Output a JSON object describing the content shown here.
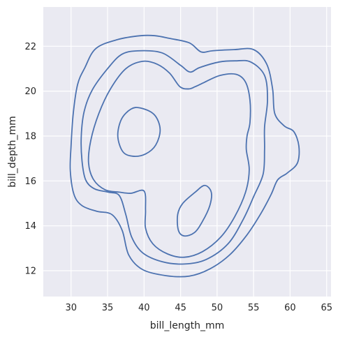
{
  "chart_data": {
    "type": "kde-contour",
    "title": "",
    "xlabel": "bill_length_mm",
    "ylabel": "bill_depth_mm",
    "xlim": [
      26.2,
      65.6
    ],
    "ylim": [
      10.85,
      23.75
    ],
    "xticks": [
      30,
      35,
      40,
      45,
      50,
      55,
      60,
      65
    ],
    "yticks": [
      12,
      14,
      16,
      18,
      20,
      22
    ],
    "grid": true,
    "line_color": "#4c72b0",
    "background_color": "#eaeaf2",
    "contours": [
      {
        "level": "outer",
        "closed": true,
        "points": [
          [
            39.5,
            22.47
          ],
          [
            36.4,
            22.3
          ],
          [
            33.4,
            21.9
          ],
          [
            31.9,
            21.05
          ],
          [
            30.9,
            20.3
          ],
          [
            30.3,
            19.0
          ],
          [
            30.0,
            17.55
          ],
          [
            29.9,
            16.45
          ],
          [
            30.4,
            15.4
          ],
          [
            31.5,
            14.9
          ],
          [
            33.5,
            14.65
          ],
          [
            35.6,
            14.5
          ],
          [
            37.0,
            13.8
          ],
          [
            37.9,
            12.7
          ],
          [
            39.8,
            12.05
          ],
          [
            43.0,
            11.78
          ],
          [
            46.2,
            11.76
          ],
          [
            49.0,
            12.08
          ],
          [
            51.7,
            12.7
          ],
          [
            54.1,
            13.6
          ],
          [
            56.0,
            14.55
          ],
          [
            57.4,
            15.4
          ],
          [
            58.3,
            16.05
          ],
          [
            59.6,
            16.35
          ],
          [
            61.0,
            16.8
          ],
          [
            61.2,
            17.55
          ],
          [
            60.5,
            18.2
          ],
          [
            59.2,
            18.45
          ],
          [
            57.9,
            19.0
          ],
          [
            57.6,
            20.1
          ],
          [
            56.8,
            21.2
          ],
          [
            55.0,
            21.85
          ],
          [
            52.3,
            21.85
          ],
          [
            49.4,
            21.8
          ],
          [
            47.8,
            21.75
          ],
          [
            46.2,
            22.15
          ],
          [
            43.5,
            22.35
          ],
          [
            41.5,
            22.47
          ]
        ]
      },
      {
        "level": "middle",
        "closed": true,
        "points": [
          [
            39.5,
            21.8
          ],
          [
            37.0,
            21.65
          ],
          [
            35.0,
            21.0
          ],
          [
            32.9,
            20.05
          ],
          [
            31.8,
            19.1
          ],
          [
            31.4,
            18.0
          ],
          [
            31.5,
            16.9
          ],
          [
            32.0,
            16.05
          ],
          [
            33.2,
            15.65
          ],
          [
            35.1,
            15.5
          ],
          [
            36.6,
            15.35
          ],
          [
            37.5,
            14.5
          ],
          [
            38.3,
            13.5
          ],
          [
            39.8,
            12.8
          ],
          [
            42.5,
            12.4
          ],
          [
            45.5,
            12.3
          ],
          [
            48.5,
            12.5
          ],
          [
            51.5,
            13.2
          ],
          [
            53.6,
            14.3
          ],
          [
            55.0,
            15.3
          ],
          [
            56.3,
            16.3
          ],
          [
            56.5,
            17.4
          ],
          [
            56.5,
            18.4
          ],
          [
            56.9,
            19.6
          ],
          [
            56.5,
            20.7
          ],
          [
            54.6,
            21.3
          ],
          [
            52.5,
            21.35
          ],
          [
            50.3,
            21.3
          ],
          [
            47.6,
            21.05
          ],
          [
            46.3,
            20.85
          ],
          [
            45.0,
            21.15
          ],
          [
            42.5,
            21.7
          ]
        ]
      },
      {
        "level": "inner",
        "closed": true,
        "points": [
          [
            39.8,
            21.33
          ],
          [
            37.5,
            21.0
          ],
          [
            35.4,
            20.1
          ],
          [
            33.8,
            19.0
          ],
          [
            32.7,
            17.8
          ],
          [
            32.4,
            16.8
          ],
          [
            33.1,
            16.05
          ],
          [
            34.7,
            15.6
          ],
          [
            36.6,
            15.5
          ],
          [
            38.2,
            15.45
          ],
          [
            40.0,
            15.55
          ],
          [
            40.2,
            14.7
          ],
          [
            40.2,
            13.9
          ],
          [
            41.2,
            13.2
          ],
          [
            43.2,
            12.75
          ],
          [
            45.5,
            12.6
          ],
          [
            48.0,
            12.85
          ],
          [
            50.5,
            13.5
          ],
          [
            52.4,
            14.4
          ],
          [
            53.9,
            15.5
          ],
          [
            54.4,
            16.5
          ],
          [
            54.0,
            17.4
          ],
          [
            54.1,
            18.0
          ],
          [
            54.5,
            18.6
          ],
          [
            54.5,
            19.6
          ],
          [
            53.9,
            20.4
          ],
          [
            52.6,
            20.75
          ],
          [
            50.4,
            20.7
          ],
          [
            48.3,
            20.4
          ],
          [
            47.0,
            20.2
          ],
          [
            46.1,
            20.1
          ],
          [
            44.9,
            20.2
          ],
          [
            43.5,
            20.8
          ],
          [
            41.8,
            21.2
          ]
        ]
      },
      {
        "level": "peak-1",
        "closed": true,
        "points": [
          [
            39.5,
            19.25
          ],
          [
            41.4,
            18.95
          ],
          [
            42.2,
            18.3
          ],
          [
            41.6,
            17.6
          ],
          [
            40.2,
            17.2
          ],
          [
            38.5,
            17.1
          ],
          [
            37.1,
            17.3
          ],
          [
            36.4,
            18.0
          ],
          [
            36.9,
            18.75
          ],
          [
            38.2,
            19.2
          ]
        ]
      },
      {
        "level": "peak-2",
        "closed": true,
        "points": [
          [
            48.3,
            15.8
          ],
          [
            49.2,
            15.5
          ],
          [
            49.0,
            14.9
          ],
          [
            48.0,
            14.2
          ],
          [
            46.9,
            13.7
          ],
          [
            45.5,
            13.55
          ],
          [
            44.7,
            13.8
          ],
          [
            44.6,
            14.5
          ],
          [
            45.3,
            15.0
          ],
          [
            47.0,
            15.5
          ]
        ]
      }
    ]
  }
}
